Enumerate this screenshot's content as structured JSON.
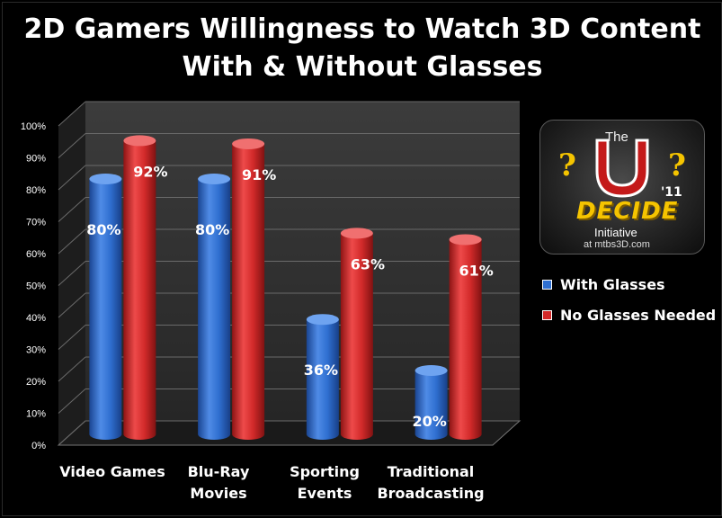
{
  "title_lines": [
    "2D Gamers Willingness to Watch 3D Content",
    "With & Without Glasses"
  ],
  "logo": {
    "top_text": "The",
    "name": "DECIDE",
    "year": "'11",
    "subtitle": "Initiative",
    "site": "at mtbs3D.com",
    "accent_color": "#f5c400"
  },
  "colors": {
    "with_glasses": "#2f6fd0",
    "no_glasses": "#d22a2a",
    "background": "#000000",
    "plot_wall": "#2f2f2f"
  },
  "chart_data": {
    "type": "bar",
    "title": "2D Gamers Willingness to Watch 3D Content With & Without Glasses",
    "categories": [
      [
        "Video Games"
      ],
      [
        "Blu-Ray",
        "Movies"
      ],
      [
        "Sporting",
        "Events"
      ],
      [
        "Traditional",
        "Broadcasting"
      ]
    ],
    "series": [
      {
        "name": "With Glasses",
        "values": [
          80,
          80,
          36,
          20
        ],
        "labels": [
          "80%",
          "80%",
          "36%",
          "20%"
        ],
        "color": "#2f6fd0"
      },
      {
        "name": "No Glasses  Needed",
        "values": [
          92,
          91,
          63,
          61
        ],
        "labels": [
          "92%",
          "91%",
          "63%",
          "61%"
        ],
        "color": "#d22a2a"
      }
    ],
    "ylim": [
      0,
      100
    ],
    "yticks": [
      "0%",
      "10%",
      "20%",
      "30%",
      "40%",
      "50%",
      "60%",
      "70%",
      "80%",
      "90%",
      "100%"
    ],
    "grid": true,
    "legend_position": "right",
    "bar_style": "3d-cylinder"
  }
}
